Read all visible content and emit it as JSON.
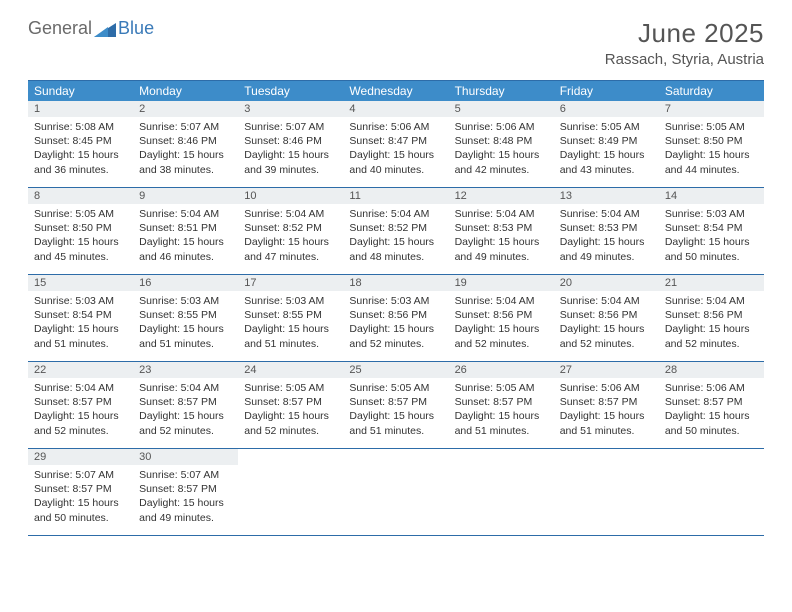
{
  "logo": {
    "general": "General",
    "blue": "Blue"
  },
  "title": "June 2025",
  "location": "Rassach, Styria, Austria",
  "colors": {
    "header_bg": "#3d8cc9",
    "header_text": "#ffffff",
    "daynum_bg": "#eceff1",
    "border": "#2d6ca8",
    "logo_gray": "#6a6a6a",
    "logo_blue": "#3a7ab8",
    "title_color": "#555555",
    "body_text": "#333333"
  },
  "dow": [
    "Sunday",
    "Monday",
    "Tuesday",
    "Wednesday",
    "Thursday",
    "Friday",
    "Saturday"
  ],
  "days": [
    {
      "n": "1",
      "sr": "5:08 AM",
      "ss": "8:45 PM",
      "dl": "15 hours and 36 minutes."
    },
    {
      "n": "2",
      "sr": "5:07 AM",
      "ss": "8:46 PM",
      "dl": "15 hours and 38 minutes."
    },
    {
      "n": "3",
      "sr": "5:07 AM",
      "ss": "8:46 PM",
      "dl": "15 hours and 39 minutes."
    },
    {
      "n": "4",
      "sr": "5:06 AM",
      "ss": "8:47 PM",
      "dl": "15 hours and 40 minutes."
    },
    {
      "n": "5",
      "sr": "5:06 AM",
      "ss": "8:48 PM",
      "dl": "15 hours and 42 minutes."
    },
    {
      "n": "6",
      "sr": "5:05 AM",
      "ss": "8:49 PM",
      "dl": "15 hours and 43 minutes."
    },
    {
      "n": "7",
      "sr": "5:05 AM",
      "ss": "8:50 PM",
      "dl": "15 hours and 44 minutes."
    },
    {
      "n": "8",
      "sr": "5:05 AM",
      "ss": "8:50 PM",
      "dl": "15 hours and 45 minutes."
    },
    {
      "n": "9",
      "sr": "5:04 AM",
      "ss": "8:51 PM",
      "dl": "15 hours and 46 minutes."
    },
    {
      "n": "10",
      "sr": "5:04 AM",
      "ss": "8:52 PM",
      "dl": "15 hours and 47 minutes."
    },
    {
      "n": "11",
      "sr": "5:04 AM",
      "ss": "8:52 PM",
      "dl": "15 hours and 48 minutes."
    },
    {
      "n": "12",
      "sr": "5:04 AM",
      "ss": "8:53 PM",
      "dl": "15 hours and 49 minutes."
    },
    {
      "n": "13",
      "sr": "5:04 AM",
      "ss": "8:53 PM",
      "dl": "15 hours and 49 minutes."
    },
    {
      "n": "14",
      "sr": "5:03 AM",
      "ss": "8:54 PM",
      "dl": "15 hours and 50 minutes."
    },
    {
      "n": "15",
      "sr": "5:03 AM",
      "ss": "8:54 PM",
      "dl": "15 hours and 51 minutes."
    },
    {
      "n": "16",
      "sr": "5:03 AM",
      "ss": "8:55 PM",
      "dl": "15 hours and 51 minutes."
    },
    {
      "n": "17",
      "sr": "5:03 AM",
      "ss": "8:55 PM",
      "dl": "15 hours and 51 minutes."
    },
    {
      "n": "18",
      "sr": "5:03 AM",
      "ss": "8:56 PM",
      "dl": "15 hours and 52 minutes."
    },
    {
      "n": "19",
      "sr": "5:04 AM",
      "ss": "8:56 PM",
      "dl": "15 hours and 52 minutes."
    },
    {
      "n": "20",
      "sr": "5:04 AM",
      "ss": "8:56 PM",
      "dl": "15 hours and 52 minutes."
    },
    {
      "n": "21",
      "sr": "5:04 AM",
      "ss": "8:56 PM",
      "dl": "15 hours and 52 minutes."
    },
    {
      "n": "22",
      "sr": "5:04 AM",
      "ss": "8:57 PM",
      "dl": "15 hours and 52 minutes."
    },
    {
      "n": "23",
      "sr": "5:04 AM",
      "ss": "8:57 PM",
      "dl": "15 hours and 52 minutes."
    },
    {
      "n": "24",
      "sr": "5:05 AM",
      "ss": "8:57 PM",
      "dl": "15 hours and 52 minutes."
    },
    {
      "n": "25",
      "sr": "5:05 AM",
      "ss": "8:57 PM",
      "dl": "15 hours and 51 minutes."
    },
    {
      "n": "26",
      "sr": "5:05 AM",
      "ss": "8:57 PM",
      "dl": "15 hours and 51 minutes."
    },
    {
      "n": "27",
      "sr": "5:06 AM",
      "ss": "8:57 PM",
      "dl": "15 hours and 51 minutes."
    },
    {
      "n": "28",
      "sr": "5:06 AM",
      "ss": "8:57 PM",
      "dl": "15 hours and 50 minutes."
    },
    {
      "n": "29",
      "sr": "5:07 AM",
      "ss": "8:57 PM",
      "dl": "15 hours and 50 minutes."
    },
    {
      "n": "30",
      "sr": "5:07 AM",
      "ss": "8:57 PM",
      "dl": "15 hours and 49 minutes."
    }
  ],
  "labels": {
    "sunrise": "Sunrise: ",
    "sunset": "Sunset: ",
    "daylight": "Daylight: "
  },
  "layout": {
    "first_dow_index": 0,
    "total_cells": 35
  }
}
